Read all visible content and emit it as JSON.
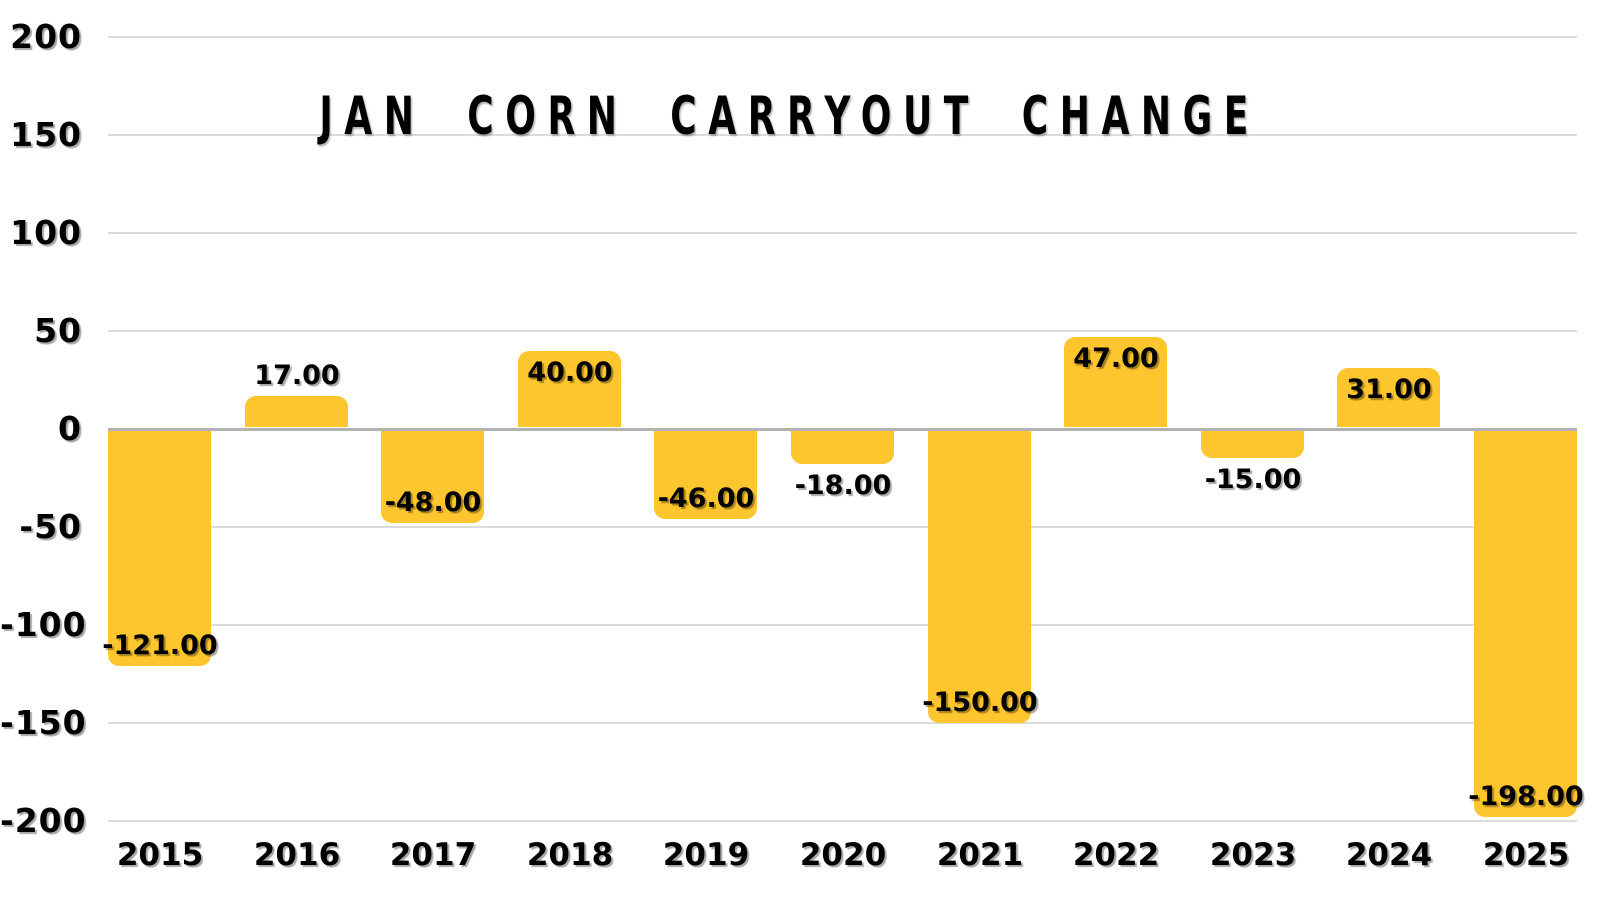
{
  "chart_data": {
    "type": "bar",
    "title": "JAN CORN CARRYOUT CHANGE",
    "categories": [
      "2015",
      "2016",
      "2017",
      "2018",
      "2019",
      "2020",
      "2021",
      "2022",
      "2023",
      "2024",
      "2025"
    ],
    "values": [
      -121,
      17,
      -48,
      40,
      -46,
      -18,
      -150,
      47,
      -15,
      31,
      -198
    ],
    "data_labels": [
      "-121.00",
      "17.00",
      "-48.00",
      "40.00",
      "-46.00",
      "-18.00",
      "-150.00",
      "47.00",
      "-15.00",
      "31.00",
      "-198.00"
    ],
    "xlabel": "",
    "ylabel": "",
    "ylim": [
      -200,
      200
    ],
    "yticks": [
      200,
      150,
      100,
      50,
      0,
      -50,
      -100,
      -150,
      -200
    ],
    "grid": true,
    "legend": "none",
    "colors": {
      "bar": "#FEC62E",
      "grid": "#DCDCDC",
      "zero_line": "#B2B2B2",
      "text": "#000000",
      "background": "#FFFFFF"
    }
  }
}
